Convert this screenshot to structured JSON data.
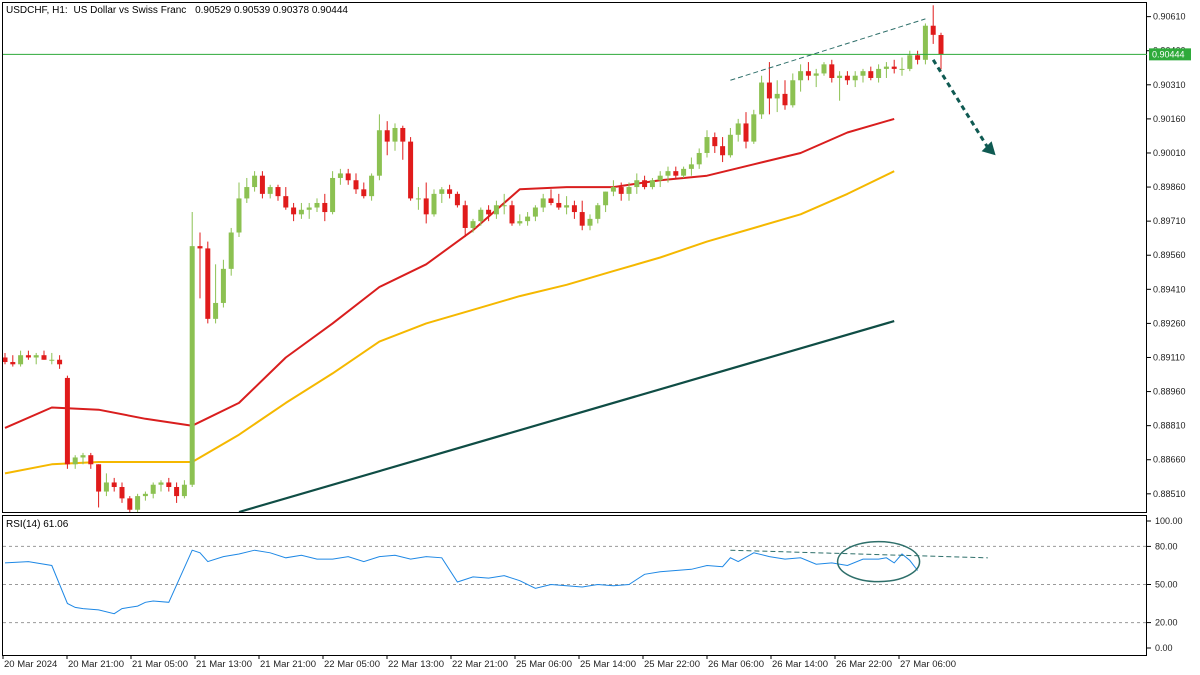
{
  "header": {
    "symbol": "USDCHF, H1:",
    "description": "US Dollar vs Swiss Franc",
    "ohlc": "0.90529 0.90539 0.90378 0.90444"
  },
  "price_panel": {
    "y_ticks": [
      "0.90610",
      "0.90460",
      "0.90310",
      "0.90160",
      "0.90010",
      "0.89860",
      "0.89710",
      "0.89560",
      "0.89410",
      "0.89260",
      "0.89110",
      "0.88960",
      "0.88810",
      "0.88660",
      "0.88510"
    ],
    "current_price_label": "0.90444"
  },
  "rsi_panel": {
    "label": "RSI(14) 61.06",
    "y_ticks": [
      "100.00",
      "80.00",
      "50.00",
      "20.00",
      "0.00"
    ]
  },
  "x_ticks": [
    "20 Mar 2024",
    "20 Mar 21:00",
    "21 Mar 05:00",
    "21 Mar 13:00",
    "21 Mar 21:00",
    "22 Mar 05:00",
    "22 Mar 13:00",
    "22 Mar 21:00",
    "25 Mar 06:00",
    "25 Mar 14:00",
    "25 Mar 22:00",
    "26 Mar 06:00",
    "26 Mar 14:00",
    "26 Mar 22:00",
    "27 Mar 06:00"
  ],
  "colors": {
    "bull": "#8cc152",
    "bear": "#e01b1b",
    "ma_fast": "#d91e1e",
    "ma_mid": "#f5b800",
    "ma_slow": "#0f4d45",
    "rsi": "#1e88e5",
    "current_line": "#2eaa3a",
    "arrow": "#0f5a52",
    "annotation": "#2e6f6a"
  },
  "chart_data": [
    {
      "type": "candlestick",
      "ylim": [
        0.8843,
        0.9067
      ],
      "last_price": 0.90444,
      "candles": [
        [
          0.8911,
          0.8913,
          0.8908,
          0.8909
        ],
        [
          0.8909,
          0.8912,
          0.8907,
          0.8908
        ],
        [
          0.8908,
          0.8914,
          0.8907,
          0.8912
        ],
        [
          0.8912,
          0.8914,
          0.891,
          0.8911
        ],
        [
          0.8911,
          0.8913,
          0.8908,
          0.8912
        ],
        [
          0.8912,
          0.8914,
          0.891,
          0.891
        ],
        [
          0.891,
          0.8913,
          0.8908,
          0.891
        ],
        [
          0.891,
          0.8912,
          0.8906,
          0.8908
        ],
        [
          0.8902,
          0.8903,
          0.8862,
          0.8864
        ],
        [
          0.8864,
          0.8868,
          0.8862,
          0.8867
        ],
        [
          0.8867,
          0.8869,
          0.8864,
          0.8868
        ],
        [
          0.8868,
          0.8869,
          0.8862,
          0.8864
        ],
        [
          0.8864,
          0.8864,
          0.8845,
          0.8852
        ],
        [
          0.8852,
          0.886,
          0.885,
          0.8856
        ],
        [
          0.8856,
          0.8858,
          0.8852,
          0.8854
        ],
        [
          0.8854,
          0.8856,
          0.8847,
          0.8849
        ],
        [
          0.8849,
          0.885,
          0.8842,
          0.8844
        ],
        [
          0.8844,
          0.8851,
          0.8843,
          0.885
        ],
        [
          0.885,
          0.8852,
          0.8848,
          0.8851
        ],
        [
          0.8851,
          0.8856,
          0.8849,
          0.8855
        ],
        [
          0.8855,
          0.8857,
          0.8852,
          0.8856
        ],
        [
          0.8856,
          0.8858,
          0.8852,
          0.8854
        ],
        [
          0.8854,
          0.8856,
          0.8847,
          0.885
        ],
        [
          0.885,
          0.8857,
          0.8849,
          0.8855
        ],
        [
          0.8855,
          0.8975,
          0.8854,
          0.896
        ],
        [
          0.896,
          0.8966,
          0.8937,
          0.8959
        ],
        [
          0.8959,
          0.8962,
          0.8926,
          0.8928
        ],
        [
          0.8928,
          0.8952,
          0.8926,
          0.8935
        ],
        [
          0.8935,
          0.8954,
          0.8933,
          0.895
        ],
        [
          0.895,
          0.8968,
          0.8947,
          0.8966
        ],
        [
          0.8966,
          0.8988,
          0.8964,
          0.8981
        ],
        [
          0.8981,
          0.899,
          0.8979,
          0.8986
        ],
        [
          0.8986,
          0.8993,
          0.8984,
          0.8991
        ],
        [
          0.8991,
          0.8993,
          0.8981,
          0.8983
        ],
        [
          0.8983,
          0.8987,
          0.8981,
          0.8986
        ],
        [
          0.8986,
          0.8987,
          0.898,
          0.8982
        ],
        [
          0.8982,
          0.8986,
          0.8976,
          0.8977
        ],
        [
          0.8977,
          0.8979,
          0.8971,
          0.8974
        ],
        [
          0.8974,
          0.8979,
          0.8972,
          0.8976
        ],
        [
          0.8976,
          0.8979,
          0.8972,
          0.8977
        ],
        [
          0.8977,
          0.8981,
          0.8975,
          0.8979
        ],
        [
          0.8979,
          0.8983,
          0.8971,
          0.8975
        ],
        [
          0.8975,
          0.8993,
          0.8974,
          0.899
        ],
        [
          0.899,
          0.8994,
          0.8987,
          0.8992
        ],
        [
          0.8992,
          0.8994,
          0.8987,
          0.8989
        ],
        [
          0.8989,
          0.8992,
          0.8983,
          0.8985
        ],
        [
          0.8985,
          0.8988,
          0.8981,
          0.8982
        ],
        [
          0.8982,
          0.8992,
          0.898,
          0.8991
        ],
        [
          0.8991,
          0.9018,
          0.8989,
          0.9011
        ],
        [
          0.9011,
          0.9015,
          0.9,
          0.9006
        ],
        [
          0.9006,
          0.9014,
          0.9002,
          0.9012
        ],
        [
          0.9012,
          0.9013,
          0.8998,
          0.9006
        ],
        [
          0.9006,
          0.9008,
          0.898,
          0.8981
        ],
        [
          0.8981,
          0.8986,
          0.8976,
          0.8981
        ],
        [
          0.8981,
          0.8988,
          0.897,
          0.8974
        ],
        [
          0.8974,
          0.8985,
          0.8973,
          0.8983
        ],
        [
          0.8983,
          0.8986,
          0.8979,
          0.8985
        ],
        [
          0.8985,
          0.8987,
          0.8981,
          0.8983
        ],
        [
          0.8983,
          0.8984,
          0.8977,
          0.8978
        ],
        [
          0.8978,
          0.898,
          0.8964,
          0.8968
        ],
        [
          0.8968,
          0.8972,
          0.8966,
          0.8971
        ],
        [
          0.8971,
          0.8977,
          0.8969,
          0.8976
        ],
        [
          0.8976,
          0.8978,
          0.8971,
          0.8974
        ],
        [
          0.8974,
          0.898,
          0.8972,
          0.8978
        ],
        [
          0.8978,
          0.8983,
          0.8974,
          0.8978
        ],
        [
          0.8978,
          0.898,
          0.8969,
          0.897
        ],
        [
          0.897,
          0.8974,
          0.8969,
          0.8971
        ],
        [
          0.8971,
          0.8975,
          0.8969,
          0.8973
        ],
        [
          0.8973,
          0.8978,
          0.8971,
          0.8977
        ],
        [
          0.8977,
          0.8983,
          0.8975,
          0.8981
        ],
        [
          0.8981,
          0.8985,
          0.8978,
          0.8979
        ],
        [
          0.8979,
          0.8983,
          0.8976,
          0.8977
        ],
        [
          0.8977,
          0.8982,
          0.8974,
          0.8978
        ],
        [
          0.8978,
          0.898,
          0.8972,
          0.8975
        ],
        [
          0.8975,
          0.898,
          0.8967,
          0.8969
        ],
        [
          0.8969,
          0.8974,
          0.8967,
          0.8972
        ],
        [
          0.8972,
          0.8979,
          0.897,
          0.8978
        ],
        [
          0.8978,
          0.8984,
          0.8975,
          0.8984
        ],
        [
          0.8984,
          0.8989,
          0.8982,
          0.8986
        ],
        [
          0.8986,
          0.8988,
          0.898,
          0.8983
        ],
        [
          0.8983,
          0.8988,
          0.898,
          0.8986
        ],
        [
          0.8986,
          0.8992,
          0.8983,
          0.8989
        ],
        [
          0.8989,
          0.8991,
          0.8985,
          0.8986
        ],
        [
          0.8986,
          0.899,
          0.8985,
          0.8989
        ],
        [
          0.8989,
          0.8993,
          0.8986,
          0.8991
        ],
        [
          0.8991,
          0.8995,
          0.8988,
          0.8993
        ],
        [
          0.8993,
          0.8995,
          0.899,
          0.8991
        ],
        [
          0.8991,
          0.8995,
          0.899,
          0.8994
        ],
        [
          0.8994,
          0.8999,
          0.8991,
          0.8996
        ],
        [
          0.8996,
          0.9003,
          0.8994,
          0.9001
        ],
        [
          0.9001,
          0.9011,
          0.8999,
          0.9008
        ],
        [
          0.9008,
          0.901,
          0.9001,
          0.9004
        ],
        [
          0.9004,
          0.9008,
          0.8997,
          0.9
        ],
        [
          0.9,
          0.9012,
          0.8999,
          0.9009
        ],
        [
          0.9009,
          0.9016,
          0.9006,
          0.9014
        ],
        [
          0.9014,
          0.9019,
          0.9003,
          0.9006
        ],
        [
          0.9006,
          0.902,
          0.9005,
          0.9018
        ],
        [
          0.9018,
          0.9035,
          0.9016,
          0.9032
        ],
        [
          0.9032,
          0.9041,
          0.9018,
          0.9025
        ],
        [
          0.9025,
          0.9033,
          0.9019,
          0.9027
        ],
        [
          0.9027,
          0.9033,
          0.902,
          0.9022
        ],
        [
          0.9022,
          0.9036,
          0.9021,
          0.9033
        ],
        [
          0.9033,
          0.904,
          0.9028,
          0.9037
        ],
        [
          0.9037,
          0.9041,
          0.9033,
          0.9035
        ],
        [
          0.9035,
          0.9038,
          0.903,
          0.9036
        ],
        [
          0.9036,
          0.9041,
          0.9035,
          0.904
        ],
        [
          0.904,
          0.9042,
          0.9032,
          0.9034
        ],
        [
          0.9034,
          0.9037,
          0.9024,
          0.9035
        ],
        [
          0.9035,
          0.9037,
          0.9031,
          0.9033
        ],
        [
          0.9033,
          0.9037,
          0.903,
          0.9035
        ],
        [
          0.9035,
          0.9038,
          0.9032,
          0.9037
        ],
        [
          0.9037,
          0.9039,
          0.9033,
          0.9034
        ],
        [
          0.9034,
          0.904,
          0.9032,
          0.9038
        ],
        [
          0.9038,
          0.9041,
          0.9034,
          0.9039
        ],
        [
          0.9039,
          0.9042,
          0.9036,
          0.9038
        ],
        [
          0.9038,
          0.9043,
          0.9035,
          0.9038
        ],
        [
          0.9038,
          0.9046,
          0.9037,
          0.9044
        ],
        [
          0.9044,
          0.9046,
          0.904,
          0.9042
        ],
        [
          0.9042,
          0.9058,
          0.904,
          0.9057
        ],
        [
          0.9057,
          0.9066,
          0.9049,
          0.9053
        ],
        [
          0.90529,
          0.90539,
          0.90378,
          0.90444
        ]
      ],
      "ma_fast": {
        "x": [
          0,
          6,
          12,
          18,
          24,
          30,
          36,
          42,
          48,
          54,
          60,
          66,
          72,
          78,
          84,
          90,
          96,
          102,
          108,
          114
        ],
        "y": [
          0.888,
          0.8889,
          0.8888,
          0.8884,
          0.8881,
          0.8891,
          0.8911,
          0.8926,
          0.8942,
          0.8952,
          0.8967,
          0.8985,
          0.8986,
          0.8986,
          0.8989,
          0.8991,
          0.8996,
          0.9001,
          0.901,
          0.9016
        ]
      },
      "ma_mid": {
        "x": [
          0,
          6,
          12,
          18,
          24,
          30,
          36,
          42,
          48,
          54,
          60,
          66,
          72,
          78,
          84,
          90,
          96,
          102,
          108,
          114
        ],
        "y": [
          0.886,
          0.8864,
          0.8865,
          0.8865,
          0.8865,
          0.8877,
          0.8891,
          0.8904,
          0.8918,
          0.8926,
          0.8932,
          0.8938,
          0.8943,
          0.8949,
          0.8955,
          0.8962,
          0.8968,
          0.8974,
          0.8983,
          0.8993
        ]
      },
      "ma_slow": {
        "x": [
          30,
          114
        ],
        "y": [
          0.8843,
          0.8927
        ]
      },
      "trendline": {
        "x": [
          93,
          118
        ],
        "y": [
          0.9033,
          0.906
        ]
      },
      "projection_arrow": {
        "x": [
          119,
          127
        ],
        "y": [
          0.9042,
          0.9
        ]
      }
    },
    {
      "type": "line",
      "title": "RSI(14) 61.06",
      "ylim": [
        0,
        100
      ],
      "x": [
        0,
        3,
        6,
        8,
        9,
        10,
        12,
        14,
        15,
        17,
        18,
        19,
        21,
        24,
        25,
        26,
        28,
        30,
        32,
        34,
        36,
        38,
        40,
        42,
        44,
        46,
        48,
        50,
        52,
        54,
        56,
        58,
        60,
        62,
        64,
        66,
        68,
        70,
        72,
        74,
        76,
        78,
        80,
        82,
        84,
        86,
        88,
        90,
        92,
        93,
        94,
        96,
        98,
        100,
        102,
        104,
        106,
        108,
        110,
        112,
        113,
        114,
        115,
        116,
        117
      ],
      "y": [
        67,
        68,
        65,
        35,
        32,
        31,
        30,
        27,
        31,
        33,
        36,
        37,
        36,
        77,
        75,
        68,
        72,
        74,
        77,
        75,
        71,
        73,
        70,
        70,
        72,
        68,
        72,
        73,
        70,
        72,
        71,
        52,
        56,
        55,
        57,
        53,
        47,
        50,
        49,
        48,
        50,
        49,
        50,
        58,
        60,
        61,
        62,
        65,
        64,
        71,
        68,
        75,
        72,
        70,
        71,
        66,
        67,
        65,
        70,
        70,
        71,
        67,
        74,
        69,
        61
      ],
      "trendline": {
        "x": [
          93,
          126
        ],
        "y": [
          77,
          71
        ]
      },
      "levels": [
        80,
        50,
        20
      ]
    }
  ]
}
